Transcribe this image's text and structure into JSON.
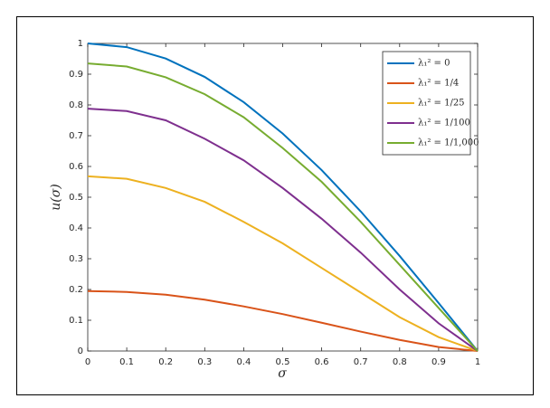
{
  "chart_data": {
    "type": "line",
    "xlabel": "σ",
    "ylabel": "u(σ)",
    "x": [
      0,
      0.1,
      0.2,
      0.3,
      0.4,
      0.5,
      0.6,
      0.7,
      0.8,
      0.9,
      1
    ],
    "series": [
      {
        "name": "λ₁² = 0",
        "color": "#0072BD",
        "values": [
          1,
          0.988,
          0.951,
          0.891,
          0.809,
          0.707,
          0.588,
          0.454,
          0.309,
          0.156,
          0
        ]
      },
      {
        "name": "λ₁² = 1/4",
        "color": "#D95319",
        "values": [
          0.195,
          0.192,
          0.183,
          0.167,
          0.145,
          0.12,
          0.092,
          0.063,
          0.036,
          0.013,
          0
        ]
      },
      {
        "name": "λ₁² = 1/25",
        "color": "#EDB120",
        "values": [
          0.568,
          0.56,
          0.53,
          0.485,
          0.42,
          0.35,
          0.27,
          0.19,
          0.11,
          0.045,
          0
        ]
      },
      {
        "name": "λ₁² = 1/100",
        "color": "#7E2F8E",
        "values": [
          0.788,
          0.78,
          0.75,
          0.69,
          0.62,
          0.53,
          0.43,
          0.32,
          0.2,
          0.09,
          0
        ]
      },
      {
        "name": "λ₁² = 1/1,000",
        "color": "#77AC30",
        "values": [
          0.935,
          0.925,
          0.89,
          0.835,
          0.76,
          0.66,
          0.55,
          0.42,
          0.28,
          0.14,
          0
        ]
      }
    ],
    "xlim": [
      0,
      1
    ],
    "ylim": [
      0,
      1
    ],
    "xticks": [
      0,
      0.1,
      0.2,
      0.3,
      0.4,
      0.5,
      0.6,
      0.7,
      0.8,
      0.9,
      1
    ],
    "yticks": [
      0,
      0.1,
      0.2,
      0.3,
      0.4,
      0.5,
      0.6,
      0.7,
      0.8,
      0.9,
      1
    ],
    "grid": false,
    "legend": "upper right"
  }
}
